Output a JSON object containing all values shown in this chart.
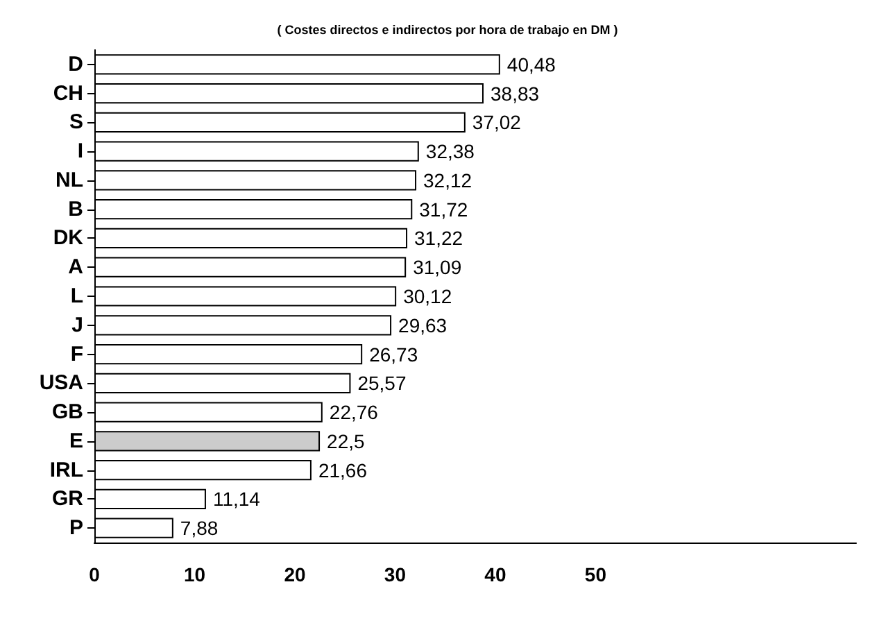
{
  "chart_data": {
    "type": "bar",
    "orientation": "horizontal",
    "title": "( Costes directos e indirectos por hora de trabajo en DM )",
    "categories": [
      "D",
      "CH",
      "S",
      "I",
      "NL",
      "B",
      "DK",
      "A",
      "L",
      "J",
      "F",
      "USA",
      "GB",
      "E",
      "IRL",
      "GR",
      "P"
    ],
    "values": [
      40.48,
      38.83,
      37.02,
      32.38,
      32.12,
      31.72,
      31.22,
      31.09,
      30.12,
      29.63,
      26.73,
      25.57,
      22.76,
      22.5,
      21.66,
      11.14,
      7.88
    ],
    "value_labels": [
      "40,48",
      "38,83",
      "37,02",
      "32,38",
      "32,12",
      "31,72",
      "31,22",
      "31,09",
      "30,12",
      "29,63",
      "26,73",
      "25,57",
      "22,76",
      "22,5",
      "21,66",
      "11,14",
      "7,88"
    ],
    "colors": [
      "#ffffff",
      "#ffffff",
      "#ffffff",
      "#ffffff",
      "#ffffff",
      "#ffffff",
      "#ffffff",
      "#ffffff",
      "#ffffff",
      "#ffffff",
      "#ffffff",
      "#ffffff",
      "#ffffff",
      "#cccccc",
      "#ffffff",
      "#ffffff",
      "#ffffff"
    ],
    "xlim": [
      0,
      76
    ],
    "xticks": [
      0,
      10,
      20,
      30,
      40,
      50
    ],
    "grid": false
  }
}
